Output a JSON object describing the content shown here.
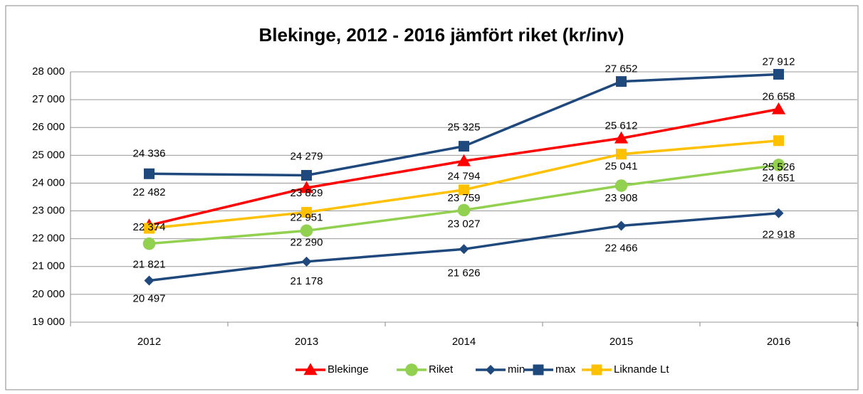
{
  "chart_data": {
    "type": "line",
    "title": "Blekinge, 2012 - 2016 jämfört riket (kr/inv)",
    "categories": [
      "2012",
      "2013",
      "2014",
      "2015",
      "2016"
    ],
    "ylim": [
      19000,
      28000
    ],
    "yticks": [
      {
        "value": 19000,
        "label": "19 000"
      },
      {
        "value": 20000,
        "label": "20 000"
      },
      {
        "value": 21000,
        "label": "21 000"
      },
      {
        "value": 22000,
        "label": "22 000"
      },
      {
        "value": 23000,
        "label": "23 000"
      },
      {
        "value": 24000,
        "label": "24 000"
      },
      {
        "value": 25000,
        "label": "25 000"
      },
      {
        "value": 26000,
        "label": "26 000"
      },
      {
        "value": 27000,
        "label": "27 000"
      },
      {
        "value": 28000,
        "label": "28 000"
      }
    ],
    "grid": true,
    "legend": "bottom",
    "series": [
      {
        "name": "Blekinge",
        "color": "#ff0000",
        "marker": "triangle",
        "values": [
          22482,
          23829,
          24794,
          25612,
          26658
        ],
        "value_labels": [
          "22 482",
          "23 829",
          "24 794",
          "25 612",
          "26 658"
        ]
      },
      {
        "name": "Riket",
        "color": "#92d050",
        "marker": "circle",
        "values": [
          21821,
          22290,
          23027,
          23908,
          24651
        ],
        "value_labels": [
          "21 821",
          "22 290",
          "23 027",
          "23 908",
          "24 651"
        ]
      },
      {
        "name": "min",
        "color": "#1f497d",
        "marker": "diamond",
        "values": [
          20497,
          21178,
          21626,
          22466,
          22918
        ],
        "value_labels": [
          "20 497",
          "21 178",
          "21 626",
          "22 466",
          "22 918"
        ]
      },
      {
        "name": "max",
        "color": "#1f497d",
        "marker": "square",
        "values": [
          24336,
          24279,
          25325,
          27652,
          27912
        ],
        "value_labels": [
          "24 336",
          "24 279",
          "25 325",
          "27 652",
          "27 912"
        ]
      },
      {
        "name": "Liknande Lt",
        "color": "#ffc000",
        "marker": "square",
        "values": [
          22374,
          22951,
          23759,
          25041,
          25526
        ],
        "value_labels": [
          "22 374",
          "22 951",
          "23 759",
          "25 041",
          "25 526"
        ]
      }
    ]
  }
}
